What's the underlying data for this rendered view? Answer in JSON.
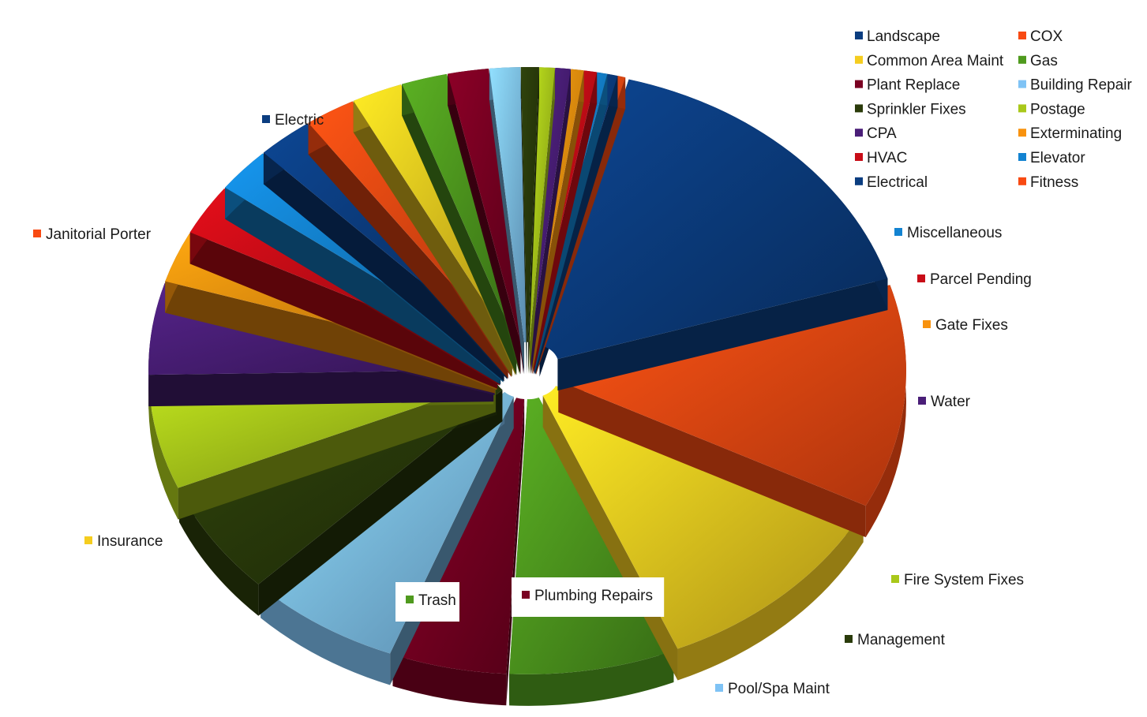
{
  "chart_data": {
    "type": "pie",
    "style": "3d-exploded",
    "legend_position": "top-right",
    "title": "",
    "slices": [
      {
        "name": "Electric",
        "value": 14.5,
        "color": "#0b3d80",
        "label": "outside"
      },
      {
        "name": "Janitorial Porter",
        "value": 11.0,
        "color": "#f84a12",
        "label": "outside"
      },
      {
        "name": "Insurance",
        "value": 10.0,
        "color": "#f5cd1f",
        "label": "outside"
      },
      {
        "name": "Trash",
        "value": 6.5,
        "color": "#4f9a1e",
        "label": "boxed"
      },
      {
        "name": "Plumbing Repairs",
        "value": 4.5,
        "color": "#7a0022",
        "label": "boxed"
      },
      {
        "name": "Pool/Spa Maint",
        "value": 6.0,
        "color": "#7fc3f5",
        "label": "outside"
      },
      {
        "name": "Management",
        "value": 5.5,
        "color": "#2a3b0a",
        "label": "outside"
      },
      {
        "name": "Fire System Fixes",
        "value": 5.5,
        "color": "#a9c81a",
        "label": "outside"
      },
      {
        "name": "Water",
        "value": 4.5,
        "color": "#4a1e78",
        "label": "outside"
      },
      {
        "name": "Gate Fixes",
        "value": 2.5,
        "color": "#f8920e",
        "label": "outside"
      },
      {
        "name": "Parcel Pending",
        "value": 2.5,
        "color": "#c80c17",
        "label": "outside"
      },
      {
        "name": "Miscellaneous",
        "value": 2.2,
        "color": "#1383d1",
        "label": "outside"
      },
      {
        "name": "Electrical",
        "value": 2.2,
        "color": "#0b3d80",
        "label": "legend"
      },
      {
        "name": "Fitness",
        "value": 2.0,
        "color": "#f84a12",
        "label": "legend"
      },
      {
        "name": "Common Area Maint",
        "value": 2.0,
        "color": "#f5cd1f",
        "label": "legend"
      },
      {
        "name": "Gas",
        "value": 1.8,
        "color": "#4f9a1e",
        "label": "legend"
      },
      {
        "name": "Plant Replace",
        "value": 1.6,
        "color": "#7a0022",
        "label": "legend"
      },
      {
        "name": "Building Repair",
        "value": 1.2,
        "color": "#7fc3f5",
        "label": "legend"
      },
      {
        "name": "Sprinkler Fixes",
        "value": 0.7,
        "color": "#2a3b0a",
        "label": "legend"
      },
      {
        "name": "Postage",
        "value": 0.6,
        "color": "#a9c81a",
        "label": "legend"
      },
      {
        "name": "CPA",
        "value": 0.6,
        "color": "#4a1e78",
        "label": "legend"
      },
      {
        "name": "Exterminating",
        "value": 0.5,
        "color": "#f8920e",
        "label": "legend"
      },
      {
        "name": "HVAC",
        "value": 0.5,
        "color": "#c80c17",
        "label": "legend"
      },
      {
        "name": "Elevator",
        "value": 0.4,
        "color": "#1383d1",
        "label": "legend"
      },
      {
        "name": "Landscape",
        "value": 0.4,
        "color": "#0b3d80",
        "label": "legend"
      },
      {
        "name": "COX",
        "value": 0.3,
        "color": "#f84a12",
        "label": "legend"
      }
    ],
    "legend": [
      {
        "name": "Landscape",
        "color": "#0b3d80"
      },
      {
        "name": "COX",
        "color": "#f84a12"
      },
      {
        "name": "Common Area Maint",
        "color": "#f5cd1f"
      },
      {
        "name": "Gas",
        "color": "#4f9a1e"
      },
      {
        "name": "Plant Replace",
        "color": "#7a0022"
      },
      {
        "name": "Building Repair",
        "color": "#7fc3f5"
      },
      {
        "name": "Sprinkler Fixes",
        "color": "#2a3b0a"
      },
      {
        "name": "Postage",
        "color": "#a9c81a"
      },
      {
        "name": "CPA",
        "color": "#4a1e78"
      },
      {
        "name": "Exterminating",
        "color": "#f8920e"
      },
      {
        "name": "HVAC",
        "color": "#c80c17"
      },
      {
        "name": "Elevator",
        "color": "#1383d1"
      },
      {
        "name": "Electrical",
        "color": "#0b3d80"
      },
      {
        "name": "Fitness",
        "color": "#f84a12"
      }
    ]
  }
}
